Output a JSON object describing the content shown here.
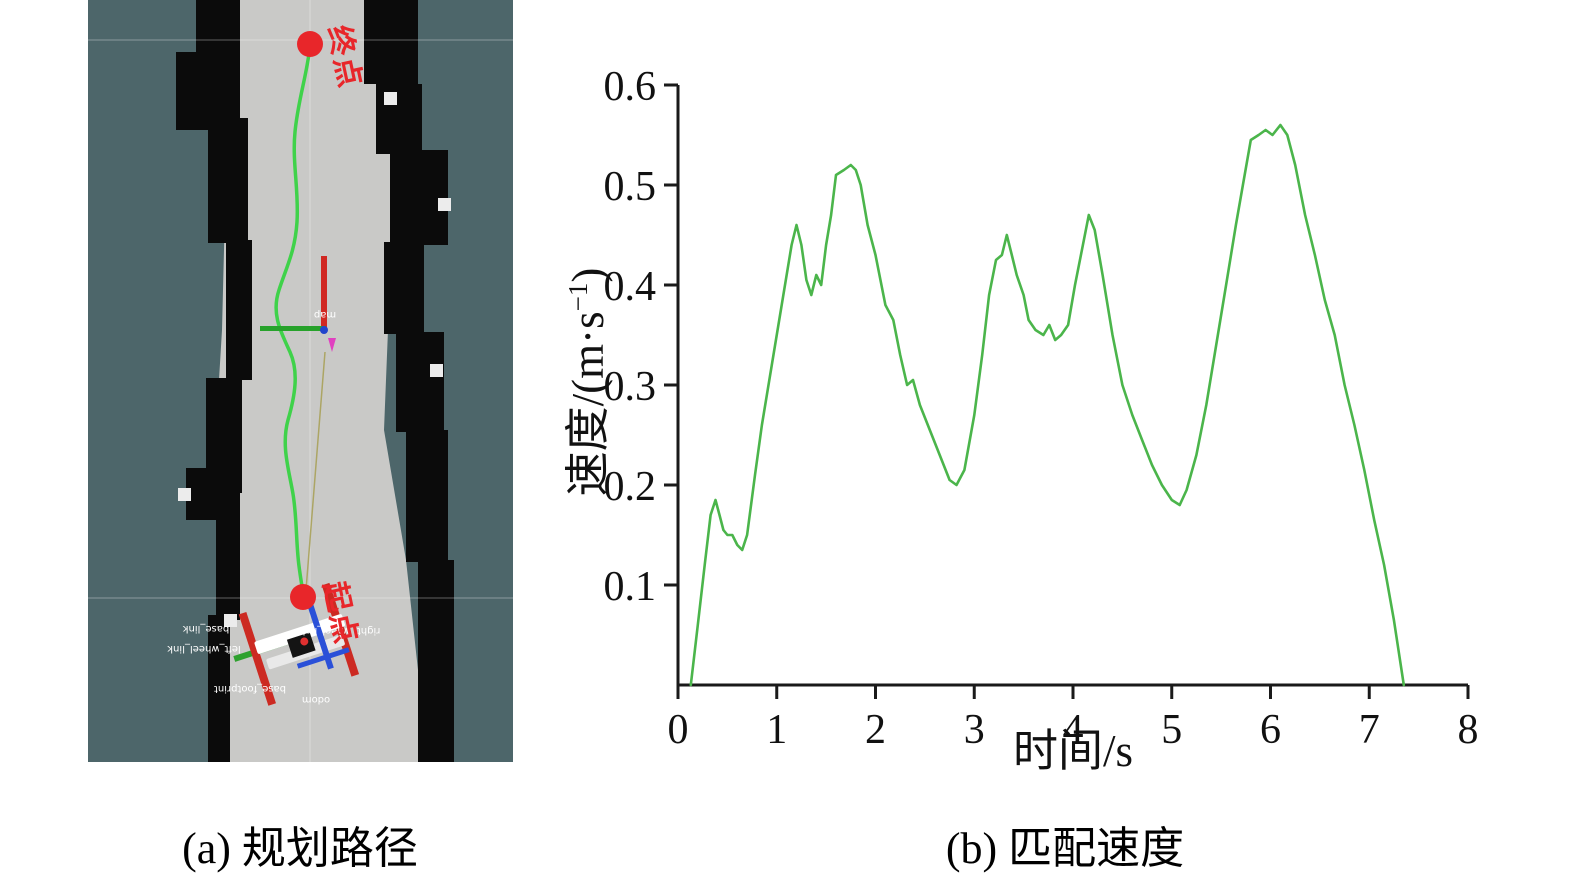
{
  "figure": {
    "panel_a": {
      "caption": "(a) 规划路径",
      "labels": {
        "end_point": "终点",
        "start_point": "起点",
        "map_frame": "map",
        "frames": [
          "base_link",
          "left_wheel_link",
          "right_wheel_link",
          "base_footprint",
          "odom"
        ]
      },
      "colors": {
        "background": "#4d666a",
        "corridor": "#c9c9c7",
        "wall": "#0b0b0b",
        "path": "#3fd24a",
        "marker": "#e8262a"
      }
    },
    "panel_b": {
      "caption": "(b) 匹配速度"
    }
  },
  "chart_data": {
    "type": "line",
    "title": "",
    "xlabel": "时间/s",
    "ylabel": "速度/(m·s⁻¹)",
    "ylabel_parts": {
      "prefix": "速度/(m·s",
      "sup": "−1",
      "suffix": ")"
    },
    "xlim": [
      0,
      8
    ],
    "ylim": [
      0,
      0.6
    ],
    "xticks": [
      0,
      1,
      2,
      3,
      4,
      5,
      6,
      7,
      8
    ],
    "yticks": [
      0.1,
      0.2,
      0.3,
      0.4,
      0.5,
      0.6
    ],
    "grid": false,
    "legend": "none",
    "line_color": "#4bb54b",
    "axis_color": "#1a1a1a",
    "series": [
      {
        "name": "匹配速度",
        "x": [
          0.13,
          0.2,
          0.27,
          0.33,
          0.38,
          0.42,
          0.46,
          0.5,
          0.55,
          0.6,
          0.65,
          0.7,
          0.78,
          0.85,
          0.95,
          1.05,
          1.15,
          1.2,
          1.25,
          1.3,
          1.35,
          1.4,
          1.45,
          1.5,
          1.55,
          1.6,
          1.68,
          1.75,
          1.8,
          1.85,
          1.92,
          2.0,
          2.1,
          2.18,
          2.25,
          2.32,
          2.38,
          2.45,
          2.55,
          2.65,
          2.75,
          2.82,
          2.9,
          3.0,
          3.08,
          3.15,
          3.22,
          3.28,
          3.33,
          3.38,
          3.43,
          3.5,
          3.55,
          3.62,
          3.7,
          3.76,
          3.82,
          3.88,
          3.95,
          4.02,
          4.1,
          4.16,
          4.22,
          4.3,
          4.4,
          4.5,
          4.6,
          4.7,
          4.8,
          4.9,
          5.0,
          5.08,
          5.15,
          5.25,
          5.35,
          5.45,
          5.55,
          5.65,
          5.72,
          5.8,
          5.88,
          5.95,
          6.02,
          6.1,
          6.17,
          6.25,
          6.35,
          6.45,
          6.55,
          6.65,
          6.75,
          6.85,
          6.95,
          7.05,
          7.15,
          7.25,
          7.35
        ],
        "y": [
          0.0,
          0.06,
          0.12,
          0.17,
          0.185,
          0.17,
          0.155,
          0.15,
          0.15,
          0.14,
          0.135,
          0.15,
          0.21,
          0.26,
          0.32,
          0.38,
          0.44,
          0.46,
          0.44,
          0.405,
          0.39,
          0.41,
          0.4,
          0.44,
          0.47,
          0.51,
          0.515,
          0.52,
          0.515,
          0.5,
          0.46,
          0.43,
          0.38,
          0.365,
          0.33,
          0.3,
          0.305,
          0.28,
          0.255,
          0.23,
          0.205,
          0.2,
          0.215,
          0.27,
          0.33,
          0.39,
          0.425,
          0.43,
          0.45,
          0.43,
          0.41,
          0.39,
          0.365,
          0.355,
          0.35,
          0.36,
          0.345,
          0.35,
          0.36,
          0.4,
          0.44,
          0.47,
          0.455,
          0.41,
          0.35,
          0.3,
          0.27,
          0.245,
          0.22,
          0.2,
          0.185,
          0.18,
          0.195,
          0.23,
          0.28,
          0.34,
          0.4,
          0.46,
          0.5,
          0.545,
          0.55,
          0.555,
          0.55,
          0.56,
          0.55,
          0.52,
          0.47,
          0.43,
          0.385,
          0.35,
          0.3,
          0.26,
          0.215,
          0.165,
          0.12,
          0.065,
          0.0
        ]
      }
    ]
  }
}
